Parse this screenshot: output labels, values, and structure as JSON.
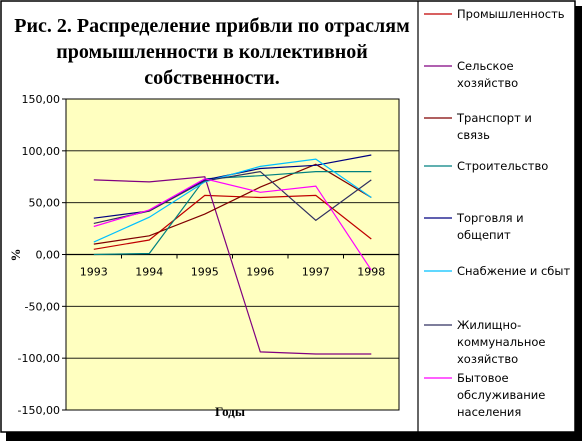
{
  "chart_data": {
    "type": "line",
    "title_lines": [
      "Рис. 2. Распределение прибвли по отраслям",
      "промышленности в коллективной",
      "собственности."
    ],
    "xlabel": "Годы",
    "ylabel": "%",
    "categories": [
      "1993",
      "1994",
      "1995",
      "1996",
      "1997",
      "1998"
    ],
    "ylim": [
      -150,
      150
    ],
    "yticks": [
      150,
      100,
      50,
      0,
      -50,
      -100,
      -150
    ],
    "ytick_labels": [
      "150,00",
      "100,00",
      "50,00",
      "0,00",
      "-50,00",
      "-100,00",
      "-150,00"
    ],
    "plot_background": "#ffffc0",
    "grid": true,
    "legend_position": "right",
    "series": [
      {
        "name_lines": [
          "Промышленность"
        ],
        "color": "#c00000",
        "values": [
          5,
          14,
          57,
          55,
          57,
          15
        ]
      },
      {
        "name_lines": [
          "Сельское",
          "хозяйство"
        ],
        "color": "#800080",
        "values": [
          72,
          70,
          75,
          -94,
          -96,
          -96
        ]
      },
      {
        "name_lines": [
          "Транспорт и",
          "связь"
        ],
        "color": "#800000",
        "values": [
          10,
          18,
          39,
          65,
          87,
          55
        ]
      },
      {
        "name_lines": [
          "Строительство"
        ],
        "color": "#008080",
        "values": [
          0,
          1,
          73,
          76,
          80,
          80
        ]
      },
      {
        "name_lines": [
          "Торговля и",
          "общепит"
        ],
        "color": "#000080",
        "values": [
          35,
          42,
          72,
          83,
          86,
          96
        ]
      },
      {
        "name_lines": [
          "Снабжение и сбыт"
        ],
        "color": "#00c0ff",
        "values": [
          12,
          36,
          70,
          85,
          92,
          55
        ]
      },
      {
        "name_lines": [
          "Жилищно-",
          "коммунальное",
          "хозяйство"
        ],
        "color": "#303060",
        "values": [
          30,
          42,
          71,
          80,
          33,
          72
        ]
      },
      {
        "name_lines": [
          "Бытовое",
          "обслуживание",
          "населения"
        ],
        "color": "#ff00ff",
        "values": [
          27,
          43,
          73,
          60,
          66,
          -15
        ]
      }
    ]
  }
}
